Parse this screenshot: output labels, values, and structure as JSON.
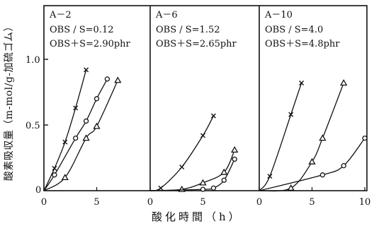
{
  "chart_data": [
    {
      "type": "line",
      "panel": "A－2",
      "info": [
        "OBS / S=0.12",
        "OBS＋S=2.90phr"
      ],
      "xlim": [
        0,
        8
      ],
      "ylim": [
        0,
        1.1
      ],
      "series": [
        {
          "marker": "x",
          "x": [
            1,
            2,
            3,
            4
          ],
          "y": [
            0.17,
            0.37,
            0.63,
            0.92
          ]
        },
        {
          "marker": "o",
          "x": [
            1,
            3,
            4,
            5,
            6
          ],
          "y": [
            0.12,
            0.4,
            0.53,
            0.7,
            0.85
          ]
        },
        {
          "marker": "triangle",
          "x": [
            2,
            4,
            5,
            7
          ],
          "y": [
            0.1,
            0.4,
            0.49,
            0.84
          ]
        }
      ]
    },
    {
      "type": "line",
      "panel": "A－6",
      "info": [
        "OBS / S=1.52",
        "OBS＋S=2.65phr"
      ],
      "xlim": [
        0,
        8
      ],
      "ylim": [
        0,
        1.1
      ],
      "series": [
        {
          "marker": "x",
          "x": [
            1,
            3,
            5,
            6
          ],
          "y": [
            0.02,
            0.18,
            0.42,
            0.57
          ]
        },
        {
          "marker": "triangle",
          "x": [
            3,
            5,
            7,
            8
          ],
          "y": [
            0.01,
            0.06,
            0.14,
            0.31
          ]
        },
        {
          "marker": "o",
          "x": [
            5,
            6,
            7,
            8
          ],
          "y": [
            0.01,
            0.02,
            0.08,
            0.24
          ]
        }
      ]
    },
    {
      "type": "line",
      "panel": "A－10",
      "info": [
        "OBS / S=4.0",
        "OBS＋S=4.8phr"
      ],
      "xlim": [
        0,
        10
      ],
      "ylim": [
        0,
        1.1
      ],
      "series": [
        {
          "marker": "x",
          "x": [
            1,
            3,
            4
          ],
          "y": [
            0.11,
            0.58,
            0.82
          ]
        },
        {
          "marker": "triangle",
          "x": [
            3,
            5,
            6,
            8
          ],
          "y": [
            0.02,
            0.22,
            0.4,
            0.82
          ]
        },
        {
          "marker": "o",
          "x": [
            6,
            8,
            10
          ],
          "y": [
            0.12,
            0.19,
            0.4
          ]
        }
      ]
    }
  ],
  "axes": {
    "ylabel": "酸素吸収量（m-mol/g-加硫ゴム）",
    "xlabel": "酸化時間（h）",
    "yticks": [
      "0.5",
      "1.0"
    ],
    "zero": "0",
    "xticks": [
      [
        "0",
        "5"
      ],
      [
        "0",
        "5"
      ],
      [
        "0",
        "5",
        "10"
      ]
    ]
  }
}
